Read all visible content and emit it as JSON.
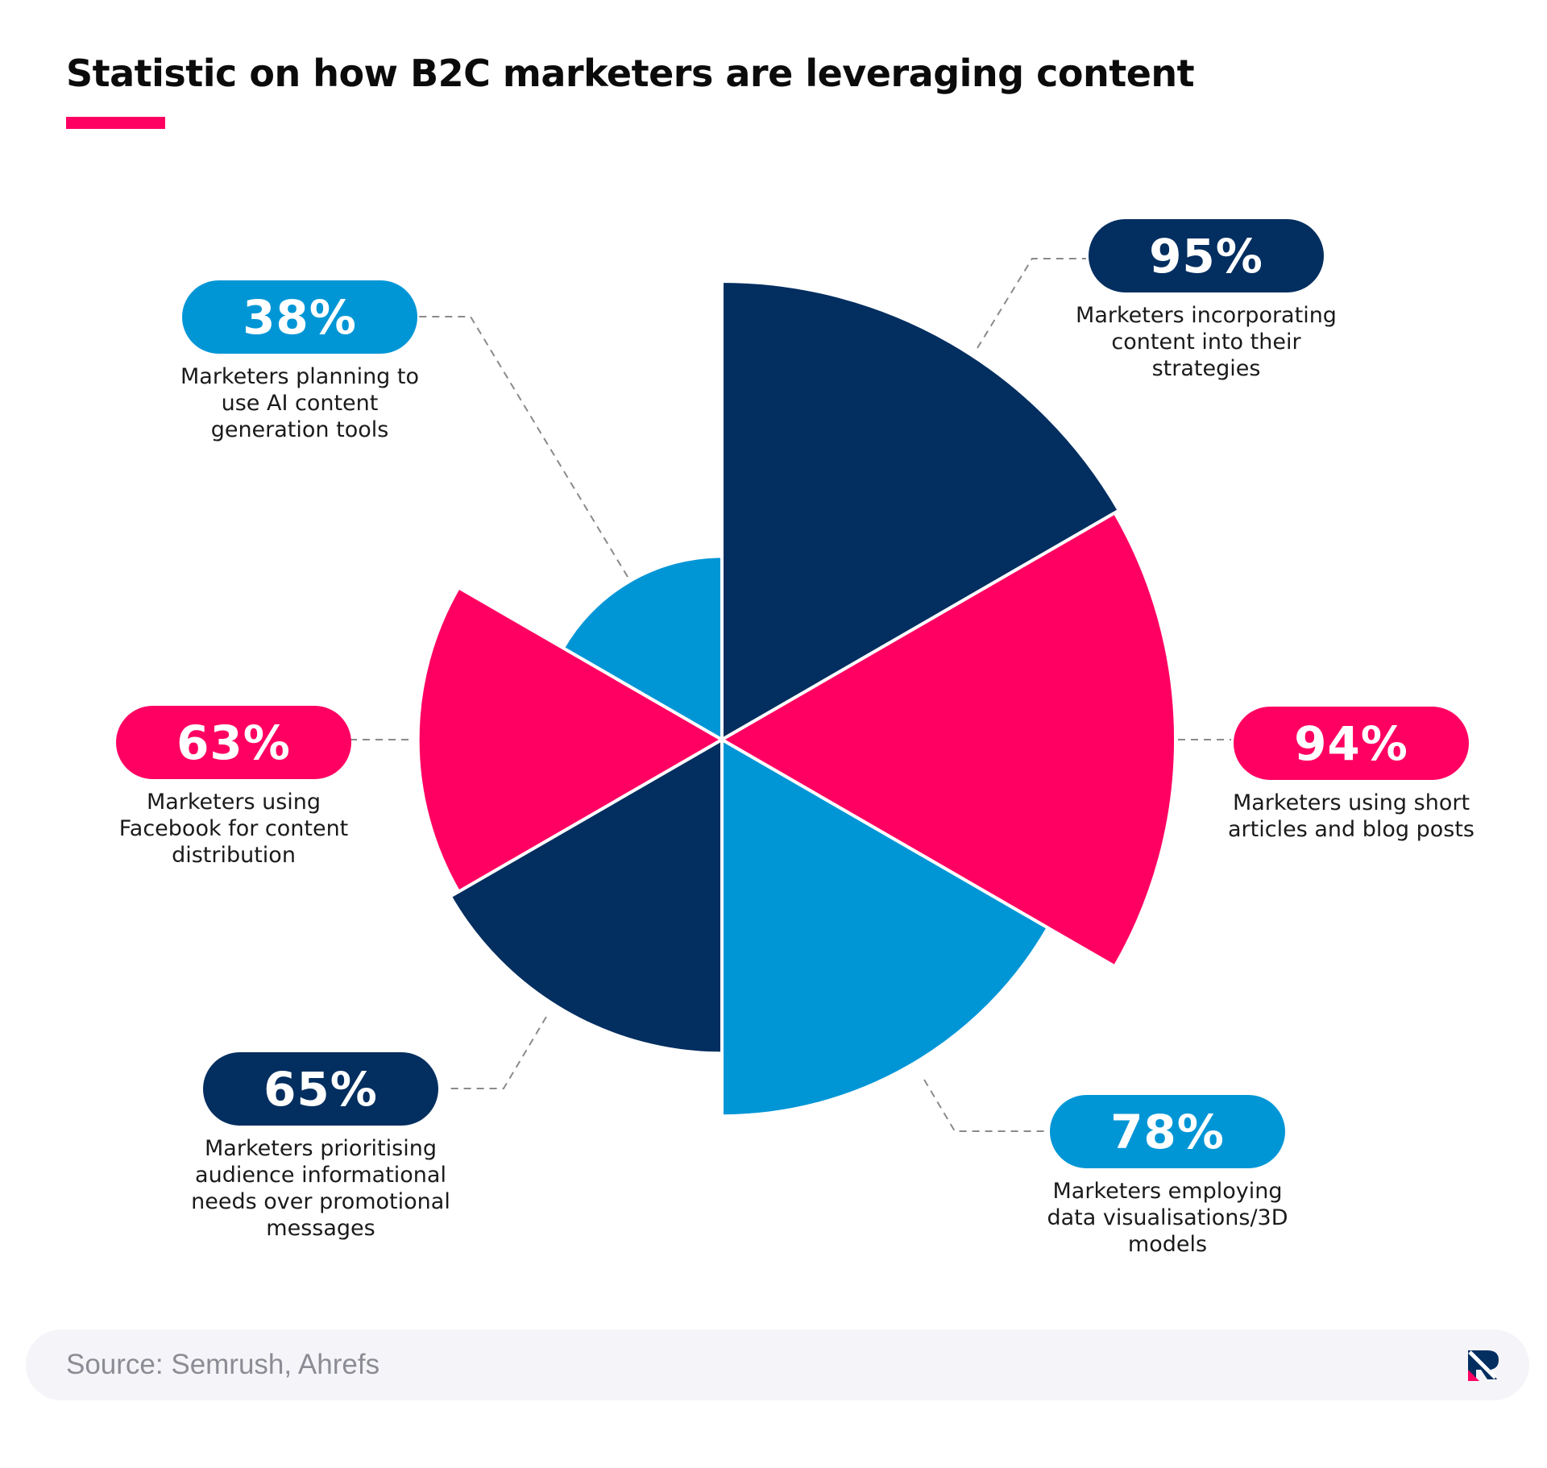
{
  "title": "Statistic on how B2C marketers are leveraging content",
  "source": "Source: Semrush, Ahrefs",
  "colors": {
    "navy": "#022e60",
    "pink": "#ff0062",
    "blue": "#0096d6",
    "accent": "#ff0062"
  },
  "chart_data": {
    "type": "polar-area",
    "unit": "%",
    "slices": [
      {
        "value": 95,
        "label": "95%",
        "description": "Marketers incorporating content into their strategies",
        "color": "#022e60"
      },
      {
        "value": 94,
        "label": "94%",
        "description": "Marketers using short articles and blog posts",
        "color": "#ff0062"
      },
      {
        "value": 78,
        "label": "78%",
        "description": "Marketers employing data visualisations/3D models",
        "color": "#0096d6"
      },
      {
        "value": 65,
        "label": "65%",
        "description": "Marketers prioritising audience informational needs over promotional messages",
        "color": "#022e60"
      },
      {
        "value": 63,
        "label": "63%",
        "description": "Marketers using Facebook for content distribution",
        "color": "#ff0062"
      },
      {
        "value": 38,
        "label": "38%",
        "description": "Marketers planning to use AI content generation tools",
        "color": "#0096d6"
      }
    ]
  },
  "logo_icon": "brand-logo-icon"
}
